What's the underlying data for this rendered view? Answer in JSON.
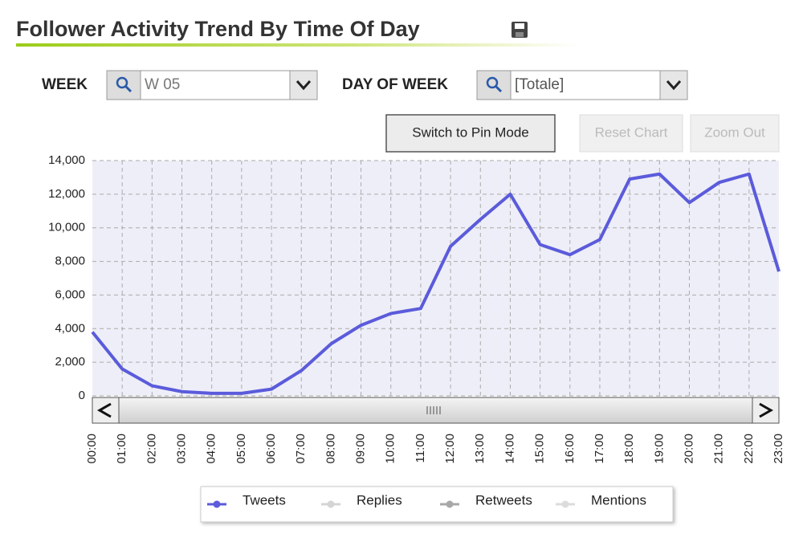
{
  "header": {
    "title": "Follower Activity Trend By Time Of Day"
  },
  "filters": {
    "week_label": "WEEK",
    "week_value": "W 05",
    "day_label": "DAY OF WEEK",
    "day_value": "[Totale]"
  },
  "buttons": {
    "pin_mode": "Switch to Pin Mode",
    "reset": "Reset Chart",
    "zoom_out": "Zoom Out"
  },
  "chart_data": {
    "type": "line",
    "categories": [
      "00:00",
      "01:00",
      "02:00",
      "03:00",
      "04:00",
      "05:00",
      "06:00",
      "07:00",
      "08:00",
      "09:00",
      "10:00",
      "11:00",
      "12:00",
      "13:00",
      "14:00",
      "15:00",
      "16:00",
      "17:00",
      "18:00",
      "19:00",
      "20:00",
      "21:00",
      "22:00",
      "23:00"
    ],
    "series": [
      {
        "name": "Tweets",
        "color": "#5b5bdb",
        "values": [
          3800,
          1600,
          600,
          250,
          150,
          150,
          400,
          1500,
          3100,
          4200,
          4900,
          5200,
          8900,
          10500,
          12000,
          9000,
          8400,
          9300,
          12900,
          13200,
          11500,
          12700,
          13200,
          7400
        ]
      },
      {
        "name": "Replies",
        "color": "#d4d4d4"
      },
      {
        "name": "Retweets",
        "color": "#a8a8a8"
      },
      {
        "name": "Mentions",
        "color": "#dcdcdc"
      }
    ],
    "ylim": [
      0,
      14000
    ],
    "yticks": [
      0,
      {
        "value": 2000,
        "label": "2,000"
      },
      {
        "value": 4000,
        "label": "4,000"
      },
      {
        "value": 6000,
        "label": "6,000"
      },
      {
        "value": 8000,
        "label": "8,000"
      },
      {
        "value": 10000,
        "label": "10,000"
      },
      {
        "value": 12000,
        "label": "12,000"
      },
      {
        "value": 14000,
        "label": "14,000"
      }
    ],
    "grid": true
  }
}
